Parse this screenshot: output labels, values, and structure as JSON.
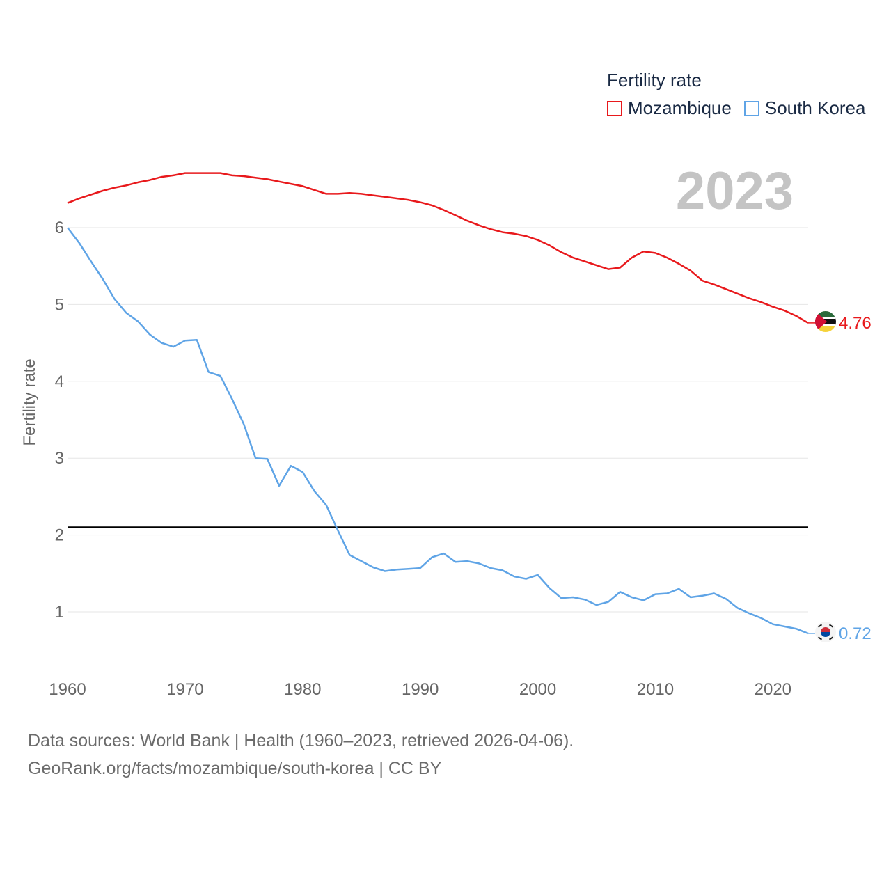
{
  "legend": {
    "title": "Fertility rate",
    "items": [
      {
        "label": "Mozambique",
        "color": "#e8191c"
      },
      {
        "label": "South Korea",
        "color": "#5fa4e6"
      }
    ]
  },
  "source": {
    "line1": "Data sources: World Bank | Health (1960–2023, retrieved 2026-04-06).",
    "line2": "GeoRank.org/facts/mozambique/south-korea | CC BY"
  },
  "chart_data": {
    "type": "line",
    "year_label": "2023",
    "ylabel": "Fertility rate",
    "xlabel": "",
    "xlim": [
      1960,
      2023
    ],
    "ylim": [
      0.4,
      6.7
    ],
    "yticks": [
      1,
      2,
      3,
      4,
      5,
      6
    ],
    "xticks": [
      1960,
      1970,
      1980,
      1990,
      2000,
      2010,
      2020
    ],
    "reference_line": {
      "value": 2.1,
      "color": "#000000"
    },
    "grid": true,
    "legend_position": "top-right",
    "x": [
      1960,
      1961,
      1962,
      1963,
      1964,
      1965,
      1966,
      1967,
      1968,
      1969,
      1970,
      1971,
      1972,
      1973,
      1974,
      1975,
      1976,
      1977,
      1978,
      1979,
      1980,
      1981,
      1982,
      1983,
      1984,
      1985,
      1986,
      1987,
      1988,
      1989,
      1990,
      1991,
      1992,
      1993,
      1994,
      1995,
      1996,
      1997,
      1998,
      1999,
      2000,
      2001,
      2002,
      2003,
      2004,
      2005,
      2006,
      2007,
      2008,
      2009,
      2010,
      2011,
      2012,
      2013,
      2014,
      2015,
      2016,
      2017,
      2018,
      2019,
      2020,
      2021,
      2022,
      2023
    ],
    "series": [
      {
        "name": "Mozambique",
        "color": "#e8191c",
        "end_label": "4.76",
        "values": [
          6.32,
          6.38,
          6.43,
          6.48,
          6.52,
          6.55,
          6.59,
          6.62,
          6.66,
          6.68,
          6.71,
          6.71,
          6.71,
          6.71,
          6.68,
          6.67,
          6.65,
          6.63,
          6.6,
          6.57,
          6.54,
          6.49,
          6.44,
          6.44,
          6.45,
          6.44,
          6.42,
          6.4,
          6.38,
          6.36,
          6.33,
          6.29,
          6.23,
          6.16,
          6.09,
          6.03,
          5.98,
          5.94,
          5.92,
          5.89,
          5.84,
          5.77,
          5.68,
          5.61,
          5.56,
          5.51,
          5.46,
          5.48,
          5.61,
          5.69,
          5.67,
          5.61,
          5.53,
          5.44,
          5.31,
          5.26,
          5.2,
          5.14,
          5.08,
          5.03,
          4.97,
          4.92,
          4.85,
          4.76
        ]
      },
      {
        "name": "South Korea",
        "color": "#5fa4e6",
        "end_label": "0.72",
        "values": [
          6.0,
          5.8,
          5.56,
          5.33,
          5.07,
          4.89,
          4.78,
          4.61,
          4.5,
          4.45,
          4.53,
          4.54,
          4.12,
          4.07,
          3.77,
          3.44,
          3.0,
          2.99,
          2.64,
          2.9,
          2.82,
          2.57,
          2.39,
          2.06,
          1.74,
          1.66,
          1.58,
          1.53,
          1.55,
          1.56,
          1.57,
          1.71,
          1.76,
          1.65,
          1.66,
          1.63,
          1.57,
          1.54,
          1.46,
          1.43,
          1.48,
          1.31,
          1.18,
          1.19,
          1.16,
          1.09,
          1.13,
          1.26,
          1.19,
          1.15,
          1.23,
          1.24,
          1.3,
          1.19,
          1.21,
          1.24,
          1.17,
          1.05,
          0.98,
          0.92,
          0.84,
          0.81,
          0.78,
          0.72
        ]
      }
    ]
  }
}
